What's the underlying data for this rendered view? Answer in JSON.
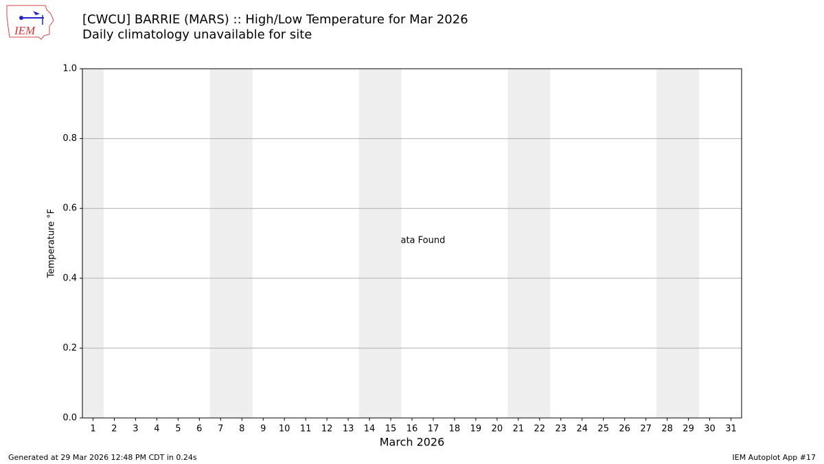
{
  "chart_data": {
    "type": "line",
    "title": "[CWCU] BARRIE (MARS) :: High/Low Temperature for Mar 2026",
    "subtitle": "Daily climatology unavailable for site",
    "logo_text": "IEM",
    "y_label": "Temperature °F",
    "x_label": "March 2026",
    "annotation": "No Data Found",
    "footer_left": "Generated at 29 Mar 2026 12:48 PM CDT in 0.24s",
    "footer_right": "IEM Autoplot App #17",
    "xlim": [
      0.5,
      31.5
    ],
    "xticks": [
      1,
      2,
      3,
      4,
      5,
      6,
      7,
      8,
      9,
      10,
      11,
      12,
      13,
      14,
      15,
      16,
      17,
      18,
      19,
      20,
      21,
      22,
      23,
      24,
      25,
      26,
      27,
      28,
      29,
      30,
      31
    ],
    "ylim": [
      0,
      1
    ],
    "yticks": [
      {
        "value": 0,
        "label": "0.0"
      },
      {
        "value": 0.2,
        "label": "0.2"
      },
      {
        "value": 0.4,
        "label": "0.4"
      },
      {
        "value": 0.6,
        "label": "0.6"
      },
      {
        "value": 0.8,
        "label": "0.8"
      },
      {
        "value": 1,
        "label": "1.0"
      }
    ],
    "grid": true,
    "grid_color": "#b0b0b0",
    "weekend_spans": [
      [
        0.5,
        1.5
      ],
      [
        6.5,
        8.5
      ],
      [
        13.5,
        15.5
      ],
      [
        20.5,
        22.5
      ],
      [
        27.5,
        29.5
      ]
    ],
    "span_color": "#eeeeee"
  }
}
